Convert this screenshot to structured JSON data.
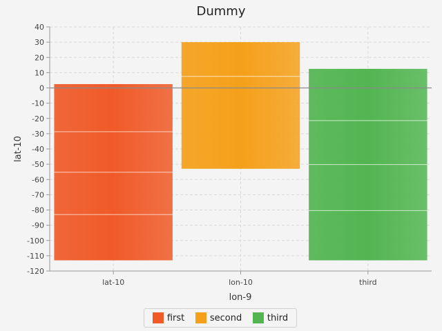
{
  "chart_data": {
    "type": "bar",
    "title": "Dummy",
    "xlabel": "lon-9",
    "ylabel": "lat-10",
    "categories": [
      "lat-10",
      "lon-10",
      "third"
    ],
    "series": [
      {
        "name": "first",
        "color": "#f05a28",
        "category": "lat-10",
        "low": -113,
        "high": 2.5
      },
      {
        "name": "second",
        "color": "#f5a01a",
        "category": "lon-10",
        "low": -53,
        "high": 30
      },
      {
        "name": "third",
        "color": "#52b551",
        "category": "third",
        "low": -113,
        "high": 12.5
      }
    ],
    "ylim": [
      -120,
      40
    ],
    "ytick_step": 10,
    "grid": true,
    "legend": "bottom-center"
  }
}
